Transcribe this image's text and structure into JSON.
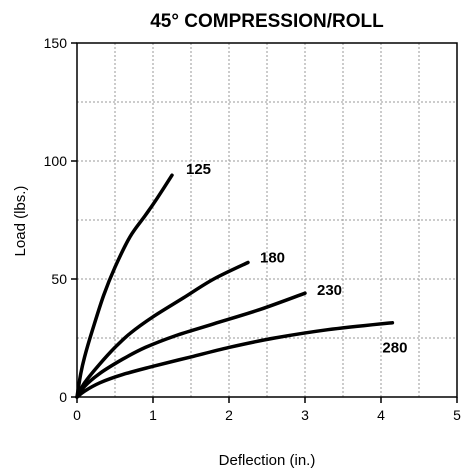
{
  "chart_data": {
    "type": "line",
    "title": "45° COMPRESSION/ROLL",
    "xlabel": "Deflection (in.)",
    "ylabel": "Load (lbs.)",
    "xlim": [
      0,
      5
    ],
    "ylim": [
      0,
      150
    ],
    "xticks": [
      "0",
      "1",
      "2",
      "3",
      "4",
      "5"
    ],
    "yticks": [
      "0",
      "50",
      "100",
      "150"
    ],
    "grid": true,
    "legend": "none",
    "series": [
      {
        "name": "125",
        "x": [
          0,
          0.05,
          0.1,
          0.2,
          0.35,
          0.5,
          0.7,
          0.9,
          1.05,
          1.25
        ],
        "y": [
          0,
          10,
          17,
          28,
          43,
          55,
          68,
          77,
          84,
          94
        ]
      },
      {
        "name": "180",
        "x": [
          0,
          0.1,
          0.3,
          0.5,
          0.7,
          1.0,
          1.4,
          1.8,
          2.25
        ],
        "y": [
          0,
          6,
          14,
          21,
          27,
          34,
          42,
          50,
          57
        ]
      },
      {
        "name": "230",
        "x": [
          0,
          0.1,
          0.3,
          0.6,
          0.9,
          1.3,
          1.8,
          2.4,
          3.0
        ],
        "y": [
          0,
          4.5,
          10,
          16,
          21,
          26,
          31,
          37,
          44
        ]
      },
      {
        "name": "280",
        "x": [
          0,
          0.1,
          0.3,
          0.6,
          1.0,
          1.5,
          2.0,
          2.6,
          3.3,
          4.15
        ],
        "y": [
          0,
          2.5,
          6,
          9.5,
          13,
          17,
          21,
          25,
          28.5,
          31.5
        ]
      }
    ]
  }
}
